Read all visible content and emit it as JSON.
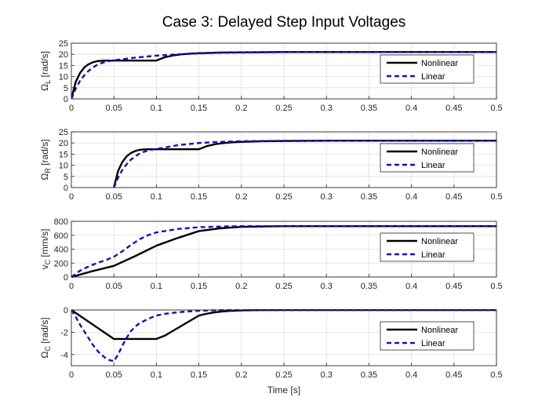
{
  "figure_title": "Case 3: Delayed Step Input Voltages",
  "xlabel": "Time [s]",
  "chart_data": [
    {
      "type": "line",
      "ylabel": "Ω_L [rad/s]",
      "ylabel_main": "Ω",
      "ylabel_sub": "L",
      "ylabel_unit": " [rad/s]",
      "xlim": [
        0,
        0.5
      ],
      "ylim": [
        0,
        25
      ],
      "xticks": [
        "0",
        "0.05",
        "0.1",
        "0.15",
        "0.2",
        "0.25",
        "0.3",
        "0.35",
        "0.4",
        "0.45",
        "0.5"
      ],
      "yticks": [
        "0",
        "5",
        "10",
        "15",
        "20",
        "25"
      ],
      "grid": true,
      "legend_position": "right",
      "series": [
        {
          "name": "Nonlinear",
          "color": "#000000",
          "style": "solid",
          "x": [
            0,
            0.005,
            0.01,
            0.015,
            0.02,
            0.025,
            0.03,
            0.035,
            0.04,
            0.045,
            0.05,
            0.1,
            0.11,
            0.12,
            0.13,
            0.14,
            0.15,
            0.175,
            0.2,
            0.25,
            0.3,
            0.5
          ],
          "y": [
            0,
            7.5,
            11.5,
            14,
            15.5,
            16.4,
            16.9,
            17.1,
            17.2,
            17.2,
            17.2,
            17.2,
            18.7,
            19.5,
            20,
            20.3,
            20.5,
            20.8,
            20.9,
            21,
            21,
            21
          ]
        },
        {
          "name": "Linear",
          "color": "#1414b4",
          "style": "dashed",
          "x": [
            0,
            0.005,
            0.01,
            0.015,
            0.02,
            0.025,
            0.03,
            0.035,
            0.04,
            0.045,
            0.05,
            0.06,
            0.075,
            0.1,
            0.125,
            0.15,
            0.175,
            0.2,
            0.25,
            0.3,
            0.5
          ],
          "y": [
            0,
            4.5,
            8,
            10.5,
            12.5,
            14,
            15.2,
            16,
            16.6,
            17,
            17.3,
            17.8,
            18.5,
            19.4,
            20,
            20.4,
            20.7,
            20.8,
            21,
            21,
            21
          ]
        }
      ]
    },
    {
      "type": "line",
      "ylabel": "Ω_R [rad/s]",
      "ylabel_main": "Ω",
      "ylabel_sub": "R",
      "ylabel_unit": " [rad/s]",
      "xlim": [
        0,
        0.5
      ],
      "ylim": [
        0,
        25
      ],
      "xticks": [
        "0",
        "0.05",
        "0.1",
        "0.15",
        "0.2",
        "0.25",
        "0.3",
        "0.35",
        "0.4",
        "0.45",
        "0.5"
      ],
      "yticks": [
        "0",
        "5",
        "10",
        "15",
        "20",
        "25"
      ],
      "grid": true,
      "legend_position": "right",
      "series": [
        {
          "name": "Nonlinear",
          "color": "#000000",
          "style": "solid",
          "x": [
            0.05,
            0.055,
            0.06,
            0.065,
            0.07,
            0.075,
            0.08,
            0.085,
            0.09,
            0.095,
            0.1,
            0.15,
            0.16,
            0.17,
            0.18,
            0.19,
            0.2,
            0.225,
            0.25,
            0.3,
            0.5
          ],
          "y": [
            0,
            7.5,
            11.5,
            14,
            15.5,
            16.4,
            16.9,
            17.1,
            17.2,
            17.2,
            17.2,
            17.2,
            18.7,
            19.5,
            20,
            20.3,
            20.5,
            20.8,
            20.9,
            21,
            21
          ]
        },
        {
          "name": "Linear",
          "color": "#1414b4",
          "style": "dashed",
          "x": [
            0.05,
            0.055,
            0.06,
            0.065,
            0.07,
            0.075,
            0.08,
            0.085,
            0.09,
            0.095,
            0.1,
            0.11,
            0.125,
            0.15,
            0.175,
            0.2,
            0.225,
            0.25,
            0.3,
            0.5
          ],
          "y": [
            0,
            4.5,
            8,
            10.5,
            12.5,
            14,
            15.2,
            16,
            16.6,
            17,
            17.3,
            18,
            19,
            20,
            20.5,
            20.8,
            20.9,
            21,
            21,
            21
          ]
        }
      ]
    },
    {
      "type": "line",
      "ylabel": "v_C [mm/s]",
      "ylabel_main": "v",
      "ylabel_sub": "C",
      "ylabel_unit": " [mm/s]",
      "xlim": [
        0,
        0.5
      ],
      "ylim": [
        0,
        800
      ],
      "xticks": [
        "0",
        "0.05",
        "0.1",
        "0.15",
        "0.2",
        "0.25",
        "0.3",
        "0.35",
        "0.4",
        "0.45",
        "0.5"
      ],
      "yticks": [
        "0",
        "200",
        "400",
        "600",
        "800"
      ],
      "grid": true,
      "legend_position": "right",
      "series": [
        {
          "name": "Nonlinear",
          "color": "#000000",
          "style": "solid",
          "x": [
            0,
            0.025,
            0.05,
            0.075,
            0.1,
            0.125,
            0.15,
            0.175,
            0.2,
            0.25,
            0.3,
            0.5
          ],
          "y": [
            0,
            85,
            160,
            300,
            450,
            560,
            660,
            700,
            720,
            730,
            730,
            730
          ]
        },
        {
          "name": "Linear",
          "color": "#1414b4",
          "style": "dashed",
          "x": [
            0,
            0.01,
            0.02,
            0.03,
            0.04,
            0.05,
            0.06,
            0.07,
            0.08,
            0.09,
            0.1,
            0.125,
            0.15,
            0.175,
            0.2,
            0.25,
            0.3,
            0.5
          ],
          "y": [
            0,
            90,
            150,
            200,
            240,
            290,
            370,
            460,
            540,
            600,
            640,
            690,
            715,
            725,
            730,
            730,
            730,
            730
          ]
        }
      ]
    },
    {
      "type": "line",
      "ylabel": "Ω_C [rad/s]",
      "ylabel_main": "Ω",
      "ylabel_sub": "C",
      "ylabel_unit": " [rad/s]",
      "xlim": [
        0,
        0.5
      ],
      "ylim": [
        -5,
        0
      ],
      "xticks": [
        "0",
        "0.05",
        "0.1",
        "0.15",
        "0.2",
        "0.25",
        "0.3",
        "0.35",
        "0.4",
        "0.45",
        "0.5"
      ],
      "yticks": [
        "-4",
        "-2",
        "0"
      ],
      "grid": true,
      "legend_position": "right",
      "series": [
        {
          "name": "Nonlinear",
          "color": "#000000",
          "style": "solid",
          "x": [
            0,
            0.05,
            0.1,
            0.11,
            0.12,
            0.13,
            0.14,
            0.15,
            0.16,
            0.17,
            0.18,
            0.19,
            0.2,
            0.22,
            0.25,
            0.5
          ],
          "y": [
            0,
            -2.6,
            -2.6,
            -2.3,
            -1.85,
            -1.4,
            -0.95,
            -0.5,
            -0.32,
            -0.2,
            -0.12,
            -0.07,
            -0.04,
            -0.01,
            0,
            0
          ]
        },
        {
          "name": "Linear",
          "color": "#1414b4",
          "style": "dashed",
          "x": [
            0,
            0.005,
            0.01,
            0.015,
            0.02,
            0.025,
            0.03,
            0.035,
            0.04,
            0.045,
            0.05,
            0.055,
            0.06,
            0.065,
            0.07,
            0.075,
            0.08,
            0.09,
            0.1,
            0.11,
            0.125,
            0.15,
            0.175,
            0.2,
            0.25,
            0.5
          ],
          "y": [
            0,
            -0.6,
            -1.3,
            -1.9,
            -2.5,
            -3.1,
            -3.6,
            -4.0,
            -4.3,
            -4.5,
            -4.6,
            -4.0,
            -3.2,
            -2.5,
            -1.9,
            -1.5,
            -1.2,
            -0.8,
            -0.5,
            -0.35,
            -0.2,
            -0.07,
            -0.02,
            0,
            0,
            0
          ]
        }
      ]
    }
  ]
}
